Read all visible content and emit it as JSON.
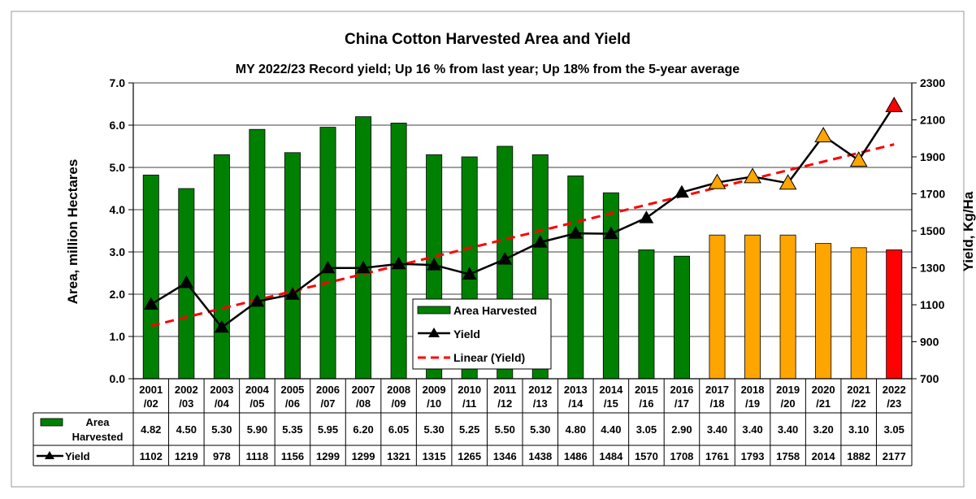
{
  "chart_data": {
    "type": "bar+line",
    "title": "China Cotton Harvested Area and Yield",
    "subtitle": "MY 2022/23 Record yield; Up 16 % from last year; Up 18% from the 5-year average",
    "ylabel_left": "Area, million Hectares",
    "ylabel_right": "Yield, Kg/Ha",
    "ylim_left": [
      0,
      7
    ],
    "ylim_right": [
      700,
      2300
    ],
    "yticks_left": [
      "0.0",
      "1.0",
      "2.0",
      "3.0",
      "4.0",
      "5.0",
      "6.0",
      "7.0"
    ],
    "yticks_right": [
      "700",
      "900",
      "1100",
      "1300",
      "1500",
      "1700",
      "1900",
      "2100",
      "2300"
    ],
    "categories": [
      [
        "2001",
        "/02"
      ],
      [
        "2002",
        "/03"
      ],
      [
        "2003",
        "/04"
      ],
      [
        "2004",
        "/05"
      ],
      [
        "2005",
        "/06"
      ],
      [
        "2006",
        "/07"
      ],
      [
        "2007",
        "/08"
      ],
      [
        "2008",
        "/09"
      ],
      [
        "2009",
        "/10"
      ],
      [
        "2010",
        "/11"
      ],
      [
        "2011",
        "/12"
      ],
      [
        "2012",
        "/13"
      ],
      [
        "2013",
        "/14"
      ],
      [
        "2014",
        "/15"
      ],
      [
        "2015",
        "/16"
      ],
      [
        "2016",
        "/17"
      ],
      [
        "2017",
        "/18"
      ],
      [
        "2018",
        "/19"
      ],
      [
        "2019",
        "/20"
      ],
      [
        "2020",
        "/21"
      ],
      [
        "2021",
        "/22"
      ],
      [
        "2022",
        "/23"
      ]
    ],
    "series": [
      {
        "name": "Area Harvested",
        "table_label": [
          "Area",
          "Harvested"
        ],
        "type": "bar",
        "axis": "left",
        "values": [
          4.82,
          4.5,
          5.3,
          5.9,
          5.35,
          5.95,
          6.2,
          6.05,
          5.3,
          5.25,
          5.5,
          5.3,
          4.8,
          4.4,
          3.05,
          2.9,
          3.4,
          3.4,
          3.4,
          3.2,
          3.1,
          3.05
        ],
        "labels": [
          "4.82",
          "4.50",
          "5.30",
          "5.90",
          "5.35",
          "5.95",
          "6.20",
          "6.05",
          "5.30",
          "5.25",
          "5.50",
          "5.30",
          "4.80",
          "4.40",
          "3.05",
          "2.90",
          "3.40",
          "3.40",
          "3.40",
          "3.20",
          "3.10",
          "3.05"
        ],
        "colors": [
          "#008000",
          "#008000",
          "#008000",
          "#008000",
          "#008000",
          "#008000",
          "#008000",
          "#008000",
          "#008000",
          "#008000",
          "#008000",
          "#008000",
          "#008000",
          "#008000",
          "#008000",
          "#008000",
          "#FFA500",
          "#FFA500",
          "#FFA500",
          "#FFA500",
          "#FFA500",
          "#FF0000"
        ]
      },
      {
        "name": "Yield",
        "table_label": [
          "Yield"
        ],
        "type": "line",
        "axis": "right",
        "values": [
          1102,
          1219,
          978,
          1118,
          1156,
          1299,
          1299,
          1321,
          1315,
          1265,
          1346,
          1438,
          1486,
          1484,
          1570,
          1708,
          1761,
          1793,
          1758,
          2014,
          1882,
          2177
        ],
        "marker_colors": [
          "#000000",
          "#000000",
          "#000000",
          "#000000",
          "#000000",
          "#000000",
          "#000000",
          "#000000",
          "#000000",
          "#000000",
          "#000000",
          "#000000",
          "#000000",
          "#000000",
          "#000000",
          "#000000",
          "#FFA500",
          "#FFA500",
          "#FFA500",
          "#FFA500",
          "#FFA500",
          "#FF0000"
        ]
      },
      {
        "name": "Linear (Yield)",
        "type": "trendline",
        "axis": "right",
        "color": "#FF0000"
      }
    ],
    "grid": true,
    "legend": "inside-bottom-center",
    "data_table": true
  }
}
